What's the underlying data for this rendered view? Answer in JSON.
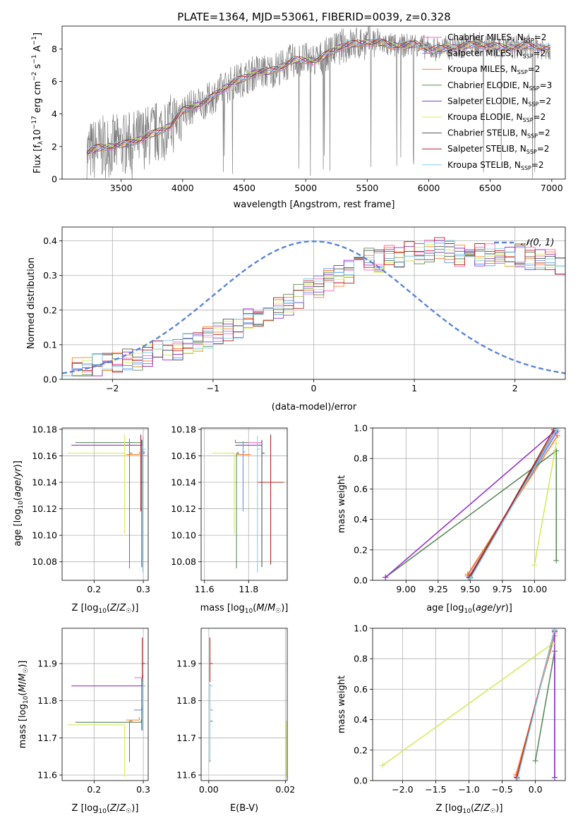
{
  "figure": {
    "title": "PLATE=1364, MJD=53061, FIBERID=0039, z=0.328"
  },
  "colors": {
    "Chabrier MILES": "#ff69b4",
    "Salpeter MILES": "#6495ed",
    "Kroupa MILES": "#ff7f27",
    "Chabrier ELODIE": "#5a8a5a",
    "Salpeter ELODIE": "#9932cc",
    "Kroupa ELODIE": "#d4eb5a",
    "Chabrier STELIB": "#555555",
    "Salpeter STELIB": "#b22222",
    "Kroupa STELIB": "#87ceeb",
    "data": "#808080",
    "normal": "#5b85d9"
  },
  "chart_data": [
    {
      "id": "spectrum",
      "type": "line",
      "xlabel": "wavelength [Angstrom, rest frame]",
      "ylabel": "Flux [f_λ10^-17 erg cm^-2 s^-1 A^-1]",
      "xlim": [
        3020,
        7110
      ],
      "ylim": [
        0,
        9.4
      ],
      "xticks": [
        3500,
        4000,
        4500,
        5000,
        5500,
        6000,
        6500,
        7000
      ],
      "yticks": [
        0,
        2,
        4,
        6,
        8
      ],
      "grid": false,
      "legend_position": "top-right",
      "legend": [
        {
          "name": "Chabrier MILES",
          "nssp": "2"
        },
        {
          "name": "Salpeter MILES",
          "nssp": "2"
        },
        {
          "name": "Kroupa MILES",
          "nssp": "2"
        },
        {
          "name": "Chabrier ELODIE",
          "nssp": "3"
        },
        {
          "name": "Salpeter ELODIE",
          "nssp": "2"
        },
        {
          "name": "Kroupa ELODIE",
          "nssp": "2"
        },
        {
          "name": "Chabrier STELIB",
          "nssp": "2"
        },
        {
          "name": "Salpeter STELIB",
          "nssp": "2"
        },
        {
          "name": "Kroupa STELIB",
          "nssp": "2"
        }
      ],
      "continuum": {
        "x": [
          3220,
          3300,
          3400,
          3500,
          3600,
          3700,
          3800,
          3900,
          4000,
          4100,
          4200,
          4300,
          4400,
          4500,
          4600,
          4700,
          4800,
          4900,
          5000,
          5100,
          5200,
          5300,
          5400,
          5500,
          5600,
          5700,
          5800,
          5900,
          6000,
          6100,
          6200,
          6300,
          6400,
          6500,
          6600,
          6700,
          6800,
          6900,
          7000
        ],
        "y": [
          1.6,
          1.9,
          2.0,
          2.1,
          2.3,
          2.6,
          2.9,
          3.3,
          4.2,
          4.5,
          4.8,
          5.4,
          5.9,
          6.2,
          6.6,
          6.6,
          6.9,
          7.3,
          7.3,
          7.3,
          7.8,
          8.2,
          8.3,
          8.4,
          8.4,
          8.2,
          8.2,
          8.3,
          8.0,
          8.0,
          8.1,
          8.2,
          8.3,
          8.2,
          8.1,
          8.1,
          8.2,
          8.1,
          8.0
        ]
      }
    },
    {
      "id": "residuals",
      "type": "histogram",
      "xlabel": "(data-model)/error",
      "ylabel": "Normed distribution",
      "xlim": [
        -2.5,
        2.5
      ],
      "ylim": [
        0,
        0.44
      ],
      "xticks": [
        -2,
        -1,
        0,
        1,
        2
      ],
      "yticks": [
        0.0,
        0.1,
        0.2,
        0.3,
        0.4
      ],
      "grid": true,
      "legend_position": "top-right",
      "normal_label": "𝒩(0, 1)",
      "bin_width": 0.1,
      "bins_start": -2.5,
      "series_base": [
        0.03,
        0.03,
        0.035,
        0.04,
        0.045,
        0.05,
        0.06,
        0.06,
        0.07,
        0.08,
        0.09,
        0.09,
        0.1,
        0.11,
        0.12,
        0.13,
        0.14,
        0.15,
        0.17,
        0.18,
        0.2,
        0.21,
        0.22,
        0.24,
        0.26,
        0.27,
        0.29,
        0.3,
        0.31,
        0.33,
        0.35,
        0.34,
        0.36,
        0.35,
        0.37,
        0.36,
        0.37,
        0.38,
        0.37,
        0.36,
        0.36,
        0.36,
        0.36,
        0.35,
        0.35,
        0.36,
        0.35,
        0.34,
        0.34,
        0.33,
        0.32,
        0.33,
        0.32,
        0.31,
        0.3,
        0.31,
        0.3,
        0.29,
        0.28,
        0.27,
        0.26,
        0.25,
        0.25,
        0.24,
        0.22,
        0.21,
        0.2,
        0.2,
        0.19,
        0.18,
        0.17,
        0.17,
        0.16,
        0.15,
        0.14,
        0.13,
        0.12,
        0.12,
        0.11,
        0.1,
        0.1,
        0.09,
        0.09,
        0.09,
        0.08,
        0.08,
        0.08,
        0.08,
        0.07,
        0.07
      ]
    },
    {
      "id": "age-vs-Z",
      "type": "errorbar",
      "xlabel": "Z [log10(Z/Z☉)]",
      "ylabel": "age [log10(age/yr)]",
      "xlim": [
        0.135,
        0.31
      ],
      "ylim": [
        10.066,
        10.181
      ],
      "xticks": [
        0.2,
        0.3
      ],
      "yticks": [
        10.08,
        10.1,
        10.12,
        10.14,
        10.16,
        10.18
      ],
      "grid": true,
      "points": [
        {
          "series": "Salpeter ELODIE",
          "x": 0.299,
          "xerr": [
            0.145,
            0.0
          ],
          "y": 10.168,
          "yerr": [
            0.0,
            0.0
          ]
        },
        {
          "series": "Chabrier ELODIE",
          "x": 0.296,
          "xerr": [
            0.134,
            0.0
          ],
          "y": 10.17,
          "yerr": [
            0.0,
            0.0
          ]
        },
        {
          "series": "Kroupa ELODIE",
          "x": 0.262,
          "xerr": [
            0.116,
            0.0
          ],
          "y": 10.162,
          "yerr": [
            0.061,
            0.014
          ]
        },
        {
          "series": "Chabrier ELODIE",
          "x": 0.272,
          "xerr": [
            0.0,
            0.0
          ],
          "y": 10.162,
          "yerr": [
            0.087,
            0.011
          ]
        },
        {
          "series": "Kroupa MILES",
          "x": 0.292,
          "xerr": [
            0.027,
            0.0
          ],
          "y": 10.161,
          "yerr": [
            0.0,
            0.0
          ]
        },
        {
          "series": "Salpeter MILES",
          "x": 0.298,
          "xerr": [
            0.0,
            0.0
          ],
          "y": 10.163,
          "yerr": [
            0.0,
            0.0
          ]
        },
        {
          "series": "Chabrier MILES",
          "x": 0.299,
          "xerr": [
            0.0,
            0.0
          ],
          "y": 10.16,
          "yerr": [
            0.0,
            0.0
          ]
        },
        {
          "series": "Salpeter STELIB",
          "x": 0.295,
          "xerr": [
            0.0,
            0.0
          ],
          "y": 10.14,
          "yerr": [
            0.022,
            0.036
          ]
        },
        {
          "series": "Chabrier STELIB",
          "x": 0.297,
          "xerr": [
            0.0,
            0.0
          ],
          "y": 10.162,
          "yerr": [
            0.086,
            0.01
          ]
        },
        {
          "series": "Kroupa STELIB",
          "x": 0.299,
          "xerr": [
            0.0,
            0.0
          ],
          "y": 10.165,
          "yerr": [
            0.093,
            0.01
          ]
        }
      ]
    },
    {
      "id": "age-vs-mass",
      "type": "errorbar",
      "xlabel": "mass [log10(M/M☉)]",
      "ylabel": "",
      "xlim": [
        11.585,
        11.975
      ],
      "ylim": [
        10.066,
        10.181
      ],
      "xticks": [
        11.6,
        11.8
      ],
      "yticks": [
        10.08,
        10.1,
        10.12,
        10.14,
        10.16,
        10.18
      ],
      "grid": true,
      "points": [
        {
          "series": "Salpeter ELODIE",
          "x": 11.84,
          "xerr": [
            0.1,
            0.02
          ],
          "y": 10.168,
          "yerr": [
            0.0,
            0.0
          ]
        },
        {
          "series": "Chabrier ELODIE",
          "x": 11.74,
          "xerr": [
            0.0,
            0.06
          ],
          "y": 10.17,
          "yerr": [
            0.0,
            0.0
          ]
        },
        {
          "series": "Kroupa ELODIE",
          "x": 11.735,
          "xerr": [
            0.1,
            0.0
          ],
          "y": 10.162,
          "yerr": [
            0.061,
            0.0
          ]
        },
        {
          "series": "Chabrier ELODIE",
          "x": 11.745,
          "xerr": [
            0.0,
            0.0
          ],
          "y": 10.162,
          "yerr": [
            0.087,
            0.0
          ]
        },
        {
          "series": "Kroupa MILES",
          "x": 11.75,
          "xerr": [
            0.0,
            0.06
          ],
          "y": 10.161,
          "yerr": [
            0.0,
            0.0
          ]
        },
        {
          "series": "Salpeter MILES",
          "x": 11.775,
          "xerr": [
            0.0,
            0.01
          ],
          "y": 10.163,
          "yerr": [
            0.045,
            0.008
          ]
        },
        {
          "series": "Chabrier MILES",
          "x": 11.86,
          "xerr": [
            0.06,
            0.0
          ],
          "y": 10.17,
          "yerr": [
            0.0,
            0.0
          ]
        },
        {
          "series": "Salpeter STELIB",
          "x": 11.9,
          "xerr": [
            0.06,
            0.06
          ],
          "y": 10.14,
          "yerr": [
            0.062,
            0.036
          ]
        },
        {
          "series": "Chabrier STELIB",
          "x": 11.86,
          "xerr": [
            0.0,
            0.0
          ],
          "y": 10.162,
          "yerr": [
            0.086,
            0.01
          ]
        },
        {
          "series": "Kroupa STELIB",
          "x": 11.84,
          "xerr": [
            0.0,
            0.0
          ],
          "y": 10.165,
          "yerr": [
            0.093,
            0.01
          ]
        }
      ]
    },
    {
      "id": "weight-vs-age",
      "type": "line",
      "xlabel": "age [log10(age/yr)]",
      "ylabel": "mass weight",
      "xlim": [
        8.74,
        10.24
      ],
      "ylim": [
        0,
        1
      ],
      "xticks": [
        9.0,
        9.25,
        9.5,
        9.75,
        10.0
      ],
      "yticks": [
        0.0,
        0.2,
        0.4,
        0.6,
        0.8,
        1.0
      ],
      "grid": true,
      "series": [
        {
          "name": "Chabrier MILES",
          "x": [
            9.48,
            10.17
          ],
          "y": [
            0.03,
            0.97
          ]
        },
        {
          "name": "Salpeter MILES",
          "x": [
            9.49,
            10.18
          ],
          "y": [
            0.02,
            0.98
          ]
        },
        {
          "name": "Kroupa MILES",
          "x": [
            9.48,
            10.18
          ],
          "y": [
            0.04,
            0.95
          ]
        },
        {
          "name": "Chabrier ELODIE",
          "x": [
            8.84,
            10.17,
            10.17
          ],
          "y": [
            0.02,
            0.85,
            0.13
          ]
        },
        {
          "name": "Salpeter ELODIE",
          "x": [
            8.84,
            10.16
          ],
          "y": [
            0.02,
            0.98
          ]
        },
        {
          "name": "Kroupa ELODIE",
          "x": [
            10.0,
            10.17
          ],
          "y": [
            0.1,
            0.9
          ]
        },
        {
          "name": "Chabrier STELIB",
          "x": [
            9.49,
            10.16
          ],
          "y": [
            0.02,
            0.98
          ]
        },
        {
          "name": "Salpeter STELIB",
          "x": [
            9.5,
            10.15
          ],
          "y": [
            0.02,
            0.99
          ]
        },
        {
          "name": "Kroupa STELIB",
          "x": [
            9.5,
            10.17
          ],
          "y": [
            0.01,
            0.99
          ]
        }
      ]
    },
    {
      "id": "mass-vs-Z",
      "type": "errorbar",
      "xlabel": "Z [log10(Z/Z☉)]",
      "ylabel": "mass [log10(M/M☉)]",
      "xlim": [
        0.135,
        0.31
      ],
      "ylim": [
        11.585,
        11.995
      ],
      "xticks": [
        0.2,
        0.3
      ],
      "yticks": [
        11.6,
        11.7,
        11.8,
        11.9
      ],
      "grid": true,
      "points": [
        {
          "series": "Salpeter ELODIE",
          "x": 0.299,
          "xerr": [
            0.145,
            0.0
          ],
          "y": 11.84,
          "yerr": [
            0.0,
            0.0
          ]
        },
        {
          "series": "Chabrier ELODIE",
          "x": 0.296,
          "xerr": [
            0.134,
            0.0
          ],
          "y": 11.742,
          "yerr": [
            0.0,
            0.0
          ]
        },
        {
          "series": "Kroupa ELODIE",
          "x": 0.262,
          "xerr": [
            0.116,
            0.0
          ],
          "y": 11.735,
          "yerr": [
            0.14,
            0.0
          ]
        },
        {
          "series": "Chabrier ELODIE",
          "x": 0.272,
          "xerr": [
            0.0,
            0.0
          ],
          "y": 11.745,
          "yerr": [
            0.11,
            0.0
          ]
        },
        {
          "series": "Kroupa MILES",
          "x": 0.292,
          "xerr": [
            0.027,
            0.0
          ],
          "y": 11.748,
          "yerr": [
            0.0,
            0.0
          ]
        },
        {
          "series": "Salpeter MILES",
          "x": 0.298,
          "xerr": [
            0.017,
            0.0
          ],
          "y": 11.775,
          "yerr": [
            0.0,
            0.0
          ]
        },
        {
          "series": "Chabrier MILES",
          "x": 0.299,
          "xerr": [
            0.017,
            0.0
          ],
          "y": 11.862,
          "yerr": [
            0.0,
            0.0
          ]
        },
        {
          "series": "Salpeter STELIB",
          "x": 0.298,
          "xerr": [
            0.0,
            0.0
          ],
          "y": 11.9,
          "yerr": [
            0.05,
            0.07
          ]
        },
        {
          "series": "Chabrier STELIB",
          "x": 0.297,
          "xerr": [
            0.0,
            0.0
          ],
          "y": 11.84,
          "yerr": [
            0.12,
            0.02
          ]
        },
        {
          "series": "Kroupa STELIB",
          "x": 0.299,
          "xerr": [
            0.0,
            0.0
          ],
          "y": 11.84,
          "yerr": [
            0.12,
            0.02
          ]
        }
      ]
    },
    {
      "id": "mass-vs-EBV",
      "type": "errorbar",
      "xlabel": "E(B-V)",
      "ylabel": "",
      "xlim": [
        -0.002,
        0.0205
      ],
      "ylim": [
        11.585,
        11.995
      ],
      "xticks": [
        0.0,
        0.02
      ],
      "yticks": [
        11.6,
        11.7,
        11.8,
        11.9
      ],
      "grid": true,
      "points": [
        {
          "series": "Salpeter STELIB",
          "x": 0.0003,
          "xerr": [
            0.0,
            0.0
          ],
          "y": 11.9,
          "yerr": [
            0.05,
            0.07
          ]
        },
        {
          "series": "Chabrier ELODIE",
          "x": 0.0003,
          "xerr": [
            0.0,
            0.0
          ],
          "y": 11.745,
          "yerr": [
            0.11,
            0.0
          ]
        },
        {
          "series": "Salpeter MILES",
          "x": 0.0003,
          "xerr": [
            0.0,
            0.0
          ],
          "y": 11.775,
          "yerr": [
            0.0,
            0.07
          ]
        },
        {
          "series": "Kroupa STELIB",
          "x": 0.0003,
          "xerr": [
            0.0,
            0.0
          ],
          "y": 11.84,
          "yerr": [
            0.2,
            0.0
          ]
        },
        {
          "series": "Kroupa ELODIE",
          "x": 0.0203,
          "xerr": [
            0.0,
            0.0
          ],
          "y": 11.735,
          "yerr": [
            0.14,
            0.01
          ]
        }
      ]
    },
    {
      "id": "weight-vs-Z",
      "type": "line",
      "xlabel": "Z [log10(Z/Z☉)]",
      "ylabel": "mass weight",
      "xlim": [
        -2.45,
        0.45
      ],
      "ylim": [
        0,
        1
      ],
      "xticks": [
        -2.0,
        -1.5,
        -1.0,
        -0.5,
        0.0
      ],
      "yticks": [
        0.0,
        0.2,
        0.4,
        0.6,
        0.8,
        1.0
      ],
      "grid": true,
      "series": [
        {
          "name": "Chabrier MILES",
          "x": [
            -0.29,
            0.29
          ],
          "y": [
            0.03,
            0.97
          ]
        },
        {
          "name": "Salpeter MILES",
          "x": [
            -0.28,
            0.29
          ],
          "y": [
            0.02,
            0.98
          ]
        },
        {
          "name": "Kroupa MILES",
          "x": [
            -0.29,
            0.29
          ],
          "y": [
            0.04,
            0.95
          ]
        },
        {
          "name": "Chabrier ELODIE",
          "x": [
            0.0,
            0.29,
            0.29
          ],
          "y": [
            0.13,
            0.85,
            0.02
          ]
        },
        {
          "name": "Salpeter ELODIE",
          "x": [
            0.29,
            0.29
          ],
          "y": [
            0.02,
            0.98
          ]
        },
        {
          "name": "Kroupa ELODIE",
          "x": [
            -2.3,
            0.26
          ],
          "y": [
            0.1,
            0.9
          ]
        },
        {
          "name": "Chabrier STELIB",
          "x": [
            -0.28,
            0.29
          ],
          "y": [
            0.02,
            0.98
          ]
        },
        {
          "name": "Salpeter STELIB",
          "x": [
            -0.28,
            0.29
          ],
          "y": [
            0.02,
            0.99
          ]
        },
        {
          "name": "Kroupa STELIB",
          "x": [
            -0.27,
            0.29
          ],
          "y": [
            0.01,
            0.99
          ]
        }
      ]
    }
  ]
}
